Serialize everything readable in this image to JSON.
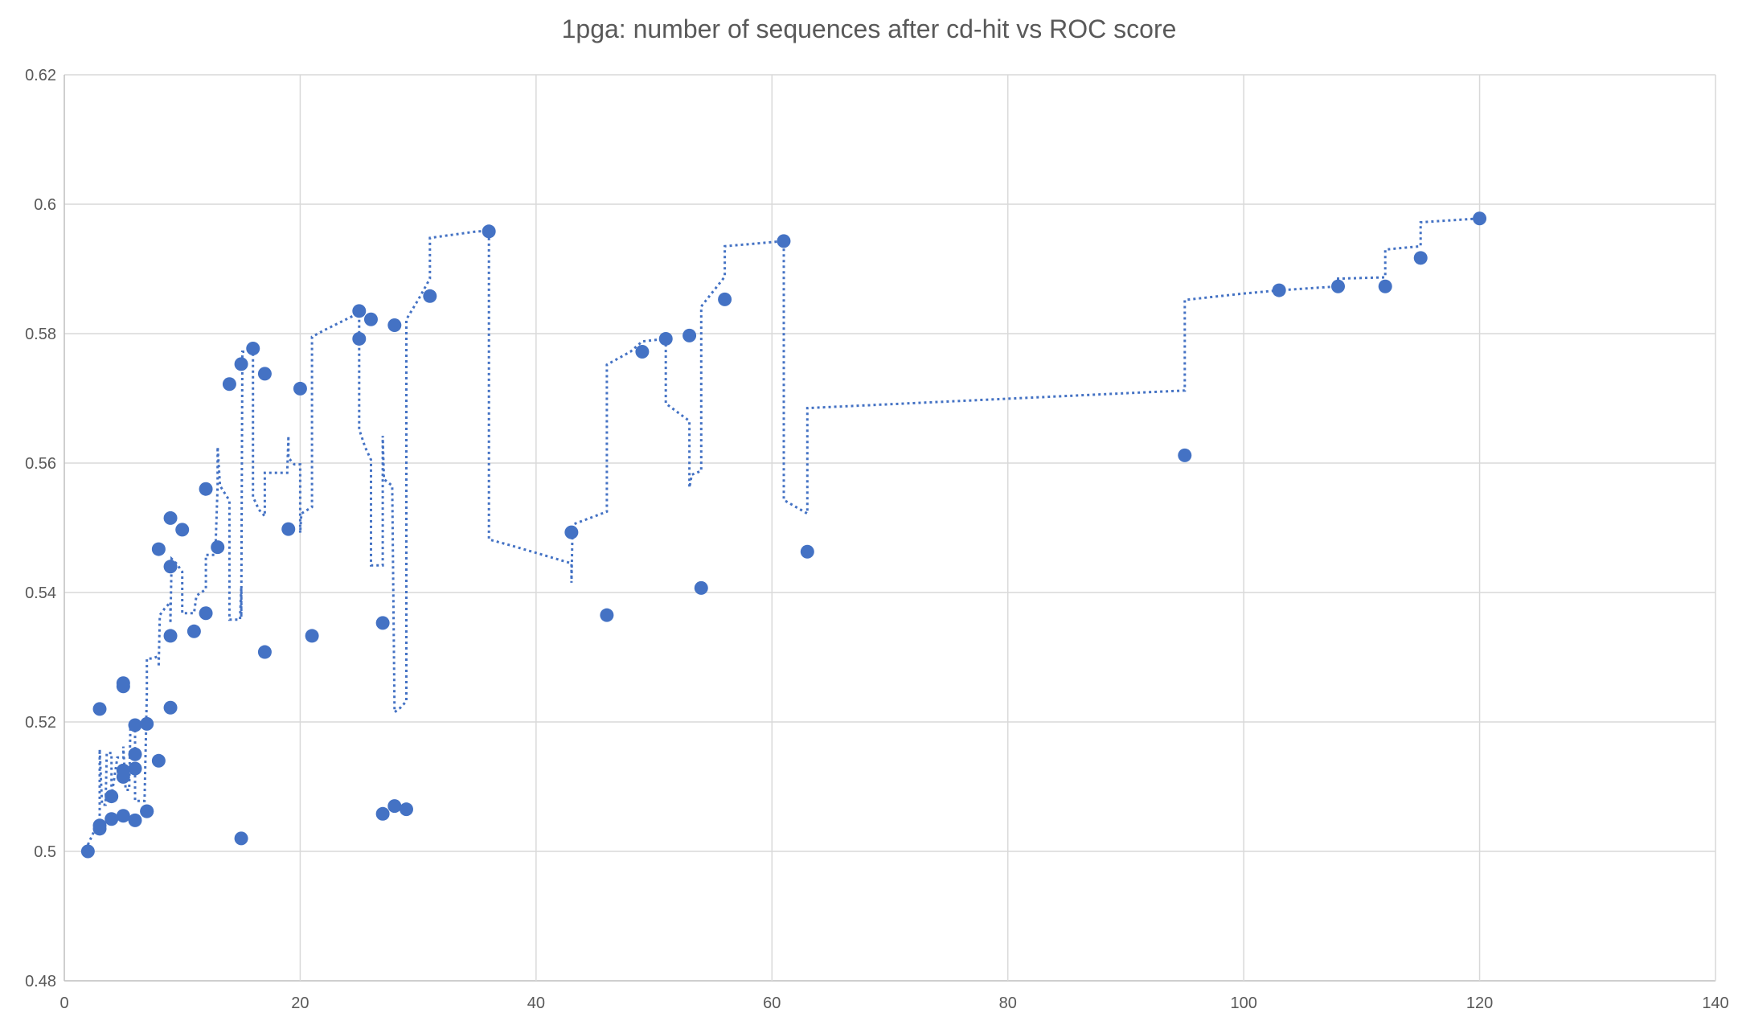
{
  "chart_data": {
    "type": "scatter",
    "title": "1pga: number of sequences after cd-hit vs ROC score",
    "xlabel": "",
    "ylabel": "",
    "xlim": [
      0,
      140
    ],
    "ylim": [
      0.48,
      0.62
    ],
    "x_ticks": [
      "0",
      "20",
      "40",
      "60",
      "80",
      "100",
      "120",
      "140"
    ],
    "y_ticks": [
      "0.48",
      "0.5",
      "0.52",
      "0.54",
      "0.56",
      "0.58",
      "0.6",
      "0.62"
    ],
    "grid": true,
    "legend": "none",
    "colors": {
      "marker": "#4472C4",
      "trendline": "#4472C4",
      "grid": "#d9d9d9",
      "text": "#595959"
    },
    "trendline_style": "dotted moving average",
    "series": [
      {
        "points": [
          [
            2,
            0.5
          ],
          [
            3,
            0.5035
          ],
          [
            3,
            0.504
          ],
          [
            3,
            0.522
          ],
          [
            4,
            0.5085
          ],
          [
            4,
            0.505
          ],
          [
            5,
            0.5125
          ],
          [
            5,
            0.5115
          ],
          [
            5,
            0.5255
          ],
          [
            5,
            0.526
          ],
          [
            5,
            0.5055
          ],
          [
            6,
            0.5195
          ],
          [
            6,
            0.515
          ],
          [
            6,
            0.5128
          ],
          [
            6,
            0.5048
          ],
          [
            7,
            0.5197
          ],
          [
            7,
            0.5062
          ],
          [
            7,
            0.5062
          ],
          [
            8,
            0.5467
          ],
          [
            8,
            0.514
          ],
          [
            9,
            0.5515
          ],
          [
            9,
            0.544
          ],
          [
            9,
            0.5333
          ],
          [
            9,
            0.5222
          ],
          [
            10,
            0.5497
          ],
          [
            11,
            0.534
          ],
          [
            12,
            0.556
          ],
          [
            12,
            0.5368
          ],
          [
            13,
            0.547
          ],
          [
            14,
            0.5722
          ],
          [
            15,
            0.5753
          ],
          [
            15,
            0.502
          ],
          [
            16,
            0.5777
          ],
          [
            17,
            0.5738
          ],
          [
            17,
            0.5308
          ],
          [
            19,
            0.5498
          ],
          [
            20,
            0.5715
          ],
          [
            21,
            0.5333
          ],
          [
            25,
            0.5835
          ],
          [
            25,
            0.5792
          ],
          [
            26,
            0.5822
          ],
          [
            27,
            0.5353
          ],
          [
            27,
            0.5058
          ],
          [
            28,
            0.5813
          ],
          [
            28,
            0.507
          ],
          [
            29,
            0.5065
          ],
          [
            31,
            0.5858
          ],
          [
            36,
            0.5958
          ],
          [
            43,
            0.5493
          ],
          [
            46,
            0.5365
          ],
          [
            49,
            0.5772
          ],
          [
            51,
            0.5792
          ],
          [
            53,
            0.5797
          ],
          [
            54,
            0.5407
          ],
          [
            56,
            0.5853
          ],
          [
            61,
            0.5943
          ],
          [
            63,
            0.5463
          ],
          [
            95,
            0.5612
          ],
          [
            103,
            0.5867
          ],
          [
            108,
            0.5873
          ],
          [
            112,
            0.5873
          ],
          [
            115,
            0.5917
          ],
          [
            120,
            0.5978
          ]
        ]
      }
    ],
    "trendline": [
      [
        2,
        0.501
      ],
      [
        2.5,
        0.503
      ],
      [
        3,
        0.5035
      ],
      [
        3,
        0.5158
      ],
      [
        3.2,
        0.5072
      ],
      [
        3.5,
        0.5072
      ],
      [
        3.6,
        0.5152
      ],
      [
        4,
        0.5152
      ],
      [
        4,
        0.5085
      ],
      [
        4.5,
        0.5145
      ],
      [
        5,
        0.5145
      ],
      [
        5,
        0.5162
      ],
      [
        5.2,
        0.5095
      ],
      [
        5.5,
        0.5095
      ],
      [
        5.6,
        0.5192
      ],
      [
        6,
        0.5192
      ],
      [
        6,
        0.5078
      ],
      [
        6.8,
        0.5078
      ],
      [
        7,
        0.5245
      ],
      [
        7,
        0.5298
      ],
      [
        7.5,
        0.5298
      ],
      [
        8,
        0.5302
      ],
      [
        8,
        0.5285
      ],
      [
        8.1,
        0.5365
      ],
      [
        8.5,
        0.5375
      ],
      [
        9,
        0.5385
      ],
      [
        9,
        0.5352
      ],
      [
        9.1,
        0.5452
      ],
      [
        9.5,
        0.5445
      ],
      [
        10,
        0.5432
      ],
      [
        10,
        0.5368
      ],
      [
        11,
        0.5368
      ],
      [
        11.2,
        0.5395
      ],
      [
        12,
        0.5405
      ],
      [
        12,
        0.5458
      ],
      [
        12.8,
        0.5458
      ],
      [
        13,
        0.5565
      ],
      [
        13,
        0.5625
      ],
      [
        13.2,
        0.5565
      ],
      [
        14,
        0.5542
      ],
      [
        14,
        0.5358
      ],
      [
        14.9,
        0.5358
      ],
      [
        15,
        0.5408
      ],
      [
        15,
        0.5362
      ],
      [
        15.1,
        0.5772
      ],
      [
        15.5,
        0.5772
      ],
      [
        16,
        0.5777
      ],
      [
        16,
        0.5548
      ],
      [
        16.5,
        0.5528
      ],
      [
        17,
        0.5518
      ],
      [
        17,
        0.5585
      ],
      [
        18,
        0.5585
      ],
      [
        18.9,
        0.5585
      ],
      [
        19,
        0.5642
      ],
      [
        19,
        0.5608
      ],
      [
        19.5,
        0.5598
      ],
      [
        20,
        0.5598
      ],
      [
        20,
        0.5492
      ],
      [
        20.1,
        0.5522
      ],
      [
        21,
        0.5532
      ],
      [
        21,
        0.5795
      ],
      [
        22,
        0.5805
      ],
      [
        25,
        0.5832
      ],
      [
        25,
        0.5652
      ],
      [
        25.5,
        0.5625
      ],
      [
        26,
        0.5605
      ],
      [
        26,
        0.5442
      ],
      [
        27,
        0.5442
      ],
      [
        27,
        0.5642
      ],
      [
        27.1,
        0.5575
      ],
      [
        27.8,
        0.5565
      ],
      [
        28,
        0.5215
      ],
      [
        28.5,
        0.5222
      ],
      [
        29,
        0.5232
      ],
      [
        29,
        0.5822
      ],
      [
        30,
        0.5852
      ],
      [
        31,
        0.5885
      ],
      [
        31,
        0.5948
      ],
      [
        35,
        0.5958
      ],
      [
        36,
        0.5958
      ],
      [
        36,
        0.5482
      ],
      [
        38,
        0.5472
      ],
      [
        43,
        0.5445
      ],
      [
        43,
        0.5415
      ],
      [
        43.1,
        0.5505
      ],
      [
        45,
        0.5518
      ],
      [
        46,
        0.5525
      ],
      [
        46,
        0.5752
      ],
      [
        48,
        0.5772
      ],
      [
        49,
        0.5788
      ],
      [
        51,
        0.5792
      ],
      [
        51,
        0.5692
      ],
      [
        53,
        0.5665
      ],
      [
        53,
        0.5562
      ],
      [
        53.2,
        0.5582
      ],
      [
        54,
        0.5588
      ],
      [
        54,
        0.5842
      ],
      [
        55,
        0.5865
      ],
      [
        56,
        0.5888
      ],
      [
        56,
        0.5935
      ],
      [
        61,
        0.5943
      ],
      [
        61,
        0.5543
      ],
      [
        63,
        0.5522
      ],
      [
        63,
        0.5685
      ],
      [
        90,
        0.5708
      ],
      [
        95,
        0.5712
      ],
      [
        95,
        0.5852
      ],
      [
        100,
        0.5862
      ],
      [
        103,
        0.5867
      ],
      [
        108,
        0.5873
      ],
      [
        108,
        0.5885
      ],
      [
        112,
        0.5887
      ],
      [
        112,
        0.593
      ],
      [
        115,
        0.5935
      ],
      [
        115,
        0.5972
      ],
      [
        120,
        0.5978
      ]
    ]
  }
}
